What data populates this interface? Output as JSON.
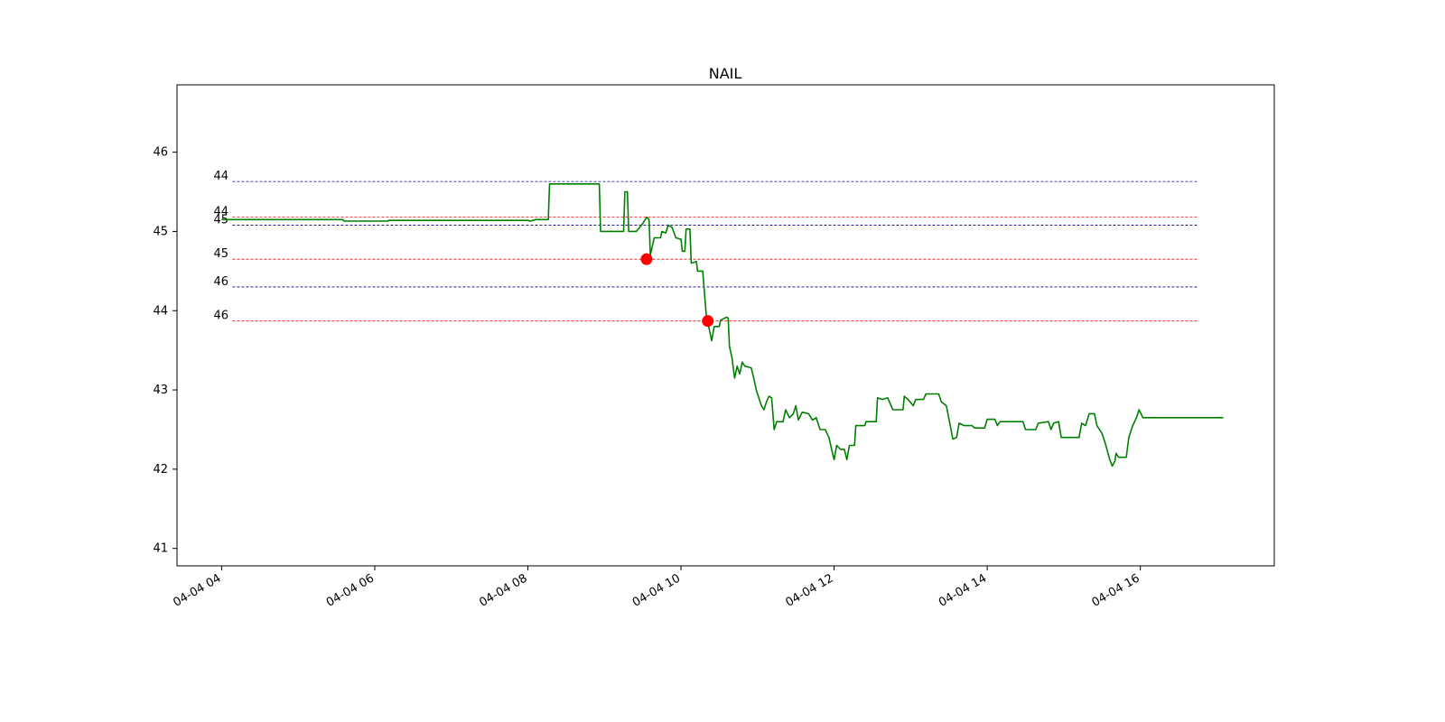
{
  "chart_data": {
    "type": "line",
    "title": "NAIL",
    "xlabel": "",
    "ylabel": "",
    "x_axis": {
      "type": "time",
      "range": [
        "04-04 03:25",
        "04-04 17:45"
      ],
      "ticks": [
        "04-04 04",
        "04-04 06",
        "04-04 08",
        "04-04 10",
        "04-04 12",
        "04-04 14",
        "04-04 16"
      ]
    },
    "y_axis": {
      "range": [
        40.78,
        46.85
      ],
      "ticks": [
        41,
        42,
        43,
        44,
        45,
        46
      ],
      "tick_labels": [
        "41",
        "42",
        "43",
        "44",
        "45",
        "46"
      ]
    },
    "grid": false,
    "legend": "none",
    "colors": {
      "price": "#008000",
      "marker": "#ff0000",
      "blue_level": "#00008b",
      "red_level": "#ff0000"
    },
    "series": [
      {
        "color": "#008000",
        "points": [
          [
            "04:00",
            45.15
          ],
          [
            "05:35",
            45.15
          ],
          [
            "05:36",
            45.13
          ],
          [
            "06:10",
            45.13
          ],
          [
            "06:11",
            45.14
          ],
          [
            "08:00",
            45.14
          ],
          [
            "08:02",
            45.13
          ],
          [
            "08:06",
            45.15
          ],
          [
            "08:16",
            45.15
          ],
          [
            "08:17",
            45.6
          ],
          [
            "08:56",
            45.6
          ],
          [
            "08:57",
            45.0
          ],
          [
            "09:15",
            45.0
          ],
          [
            "09:16",
            45.5
          ],
          [
            "09:18",
            45.5
          ],
          [
            "09:19",
            45.0
          ],
          [
            "09:25",
            45.0
          ],
          [
            "09:30",
            45.1
          ],
          [
            "09:33",
            45.18
          ],
          [
            "09:35",
            45.15
          ],
          [
            "09:36",
            44.7
          ],
          [
            "09:39",
            44.92
          ],
          [
            "09:44",
            44.92
          ],
          [
            "09:45",
            45.0
          ],
          [
            "09:48",
            44.98
          ],
          [
            "09:50",
            45.08
          ],
          [
            "09:53",
            45.05
          ],
          [
            "09:56",
            44.92
          ],
          [
            "10:00",
            44.9
          ],
          [
            "10:01",
            44.75
          ],
          [
            "10:03",
            44.75
          ],
          [
            "10:04",
            45.03
          ],
          [
            "10:07",
            45.03
          ],
          [
            "10:08",
            44.6
          ],
          [
            "10:12",
            44.62
          ],
          [
            "10:13",
            44.5
          ],
          [
            "10:17",
            44.5
          ],
          [
            "10:18",
            44.3
          ],
          [
            "10:20",
            43.9
          ],
          [
            "10:22",
            43.78
          ],
          [
            "10:24",
            43.62
          ],
          [
            "10:26",
            43.8
          ],
          [
            "10:30",
            43.8
          ],
          [
            "10:31",
            43.88
          ],
          [
            "10:36",
            43.92
          ],
          [
            "10:37",
            43.9
          ],
          [
            "10:38",
            43.55
          ],
          [
            "10:40",
            43.4
          ],
          [
            "10:42",
            43.15
          ],
          [
            "10:44",
            43.3
          ],
          [
            "10:46",
            43.2
          ],
          [
            "10:48",
            43.35
          ],
          [
            "10:50",
            43.3
          ],
          [
            "10:55",
            43.28
          ],
          [
            "10:57",
            43.15
          ],
          [
            "10:59",
            43.0
          ],
          [
            "11:01",
            42.9
          ],
          [
            "11:03",
            42.8
          ],
          [
            "11:05",
            42.75
          ],
          [
            "11:07",
            42.85
          ],
          [
            "11:09",
            42.92
          ],
          [
            "11:11",
            42.9
          ],
          [
            "11:13",
            42.5
          ],
          [
            "11:15",
            42.6
          ],
          [
            "11:20",
            42.6
          ],
          [
            "11:22",
            42.75
          ],
          [
            "11:25",
            42.65
          ],
          [
            "11:28",
            42.7
          ],
          [
            "11:30",
            42.8
          ],
          [
            "11:32",
            42.62
          ],
          [
            "11:35",
            42.72
          ],
          [
            "11:40",
            42.7
          ],
          [
            "11:43",
            42.62
          ],
          [
            "11:46",
            42.65
          ],
          [
            "11:49",
            42.5
          ],
          [
            "11:53",
            42.5
          ],
          [
            "11:56",
            42.4
          ],
          [
            "11:58",
            42.25
          ],
          [
            "12:00",
            42.12
          ],
          [
            "12:02",
            42.3
          ],
          [
            "12:05",
            42.25
          ],
          [
            "12:08",
            42.25
          ],
          [
            "12:10",
            42.12
          ],
          [
            "12:12",
            42.3
          ],
          [
            "12:16",
            42.3
          ],
          [
            "12:17",
            42.55
          ],
          [
            "12:24",
            42.55
          ],
          [
            "12:25",
            42.6
          ],
          [
            "12:33",
            42.6
          ],
          [
            "12:34",
            42.9
          ],
          [
            "12:38",
            42.88
          ],
          [
            "12:42",
            42.9
          ],
          [
            "12:46",
            42.75
          ],
          [
            "12:54",
            42.75
          ],
          [
            "12:55",
            42.92
          ],
          [
            "12:58",
            42.88
          ],
          [
            "13:02",
            42.8
          ],
          [
            "13:04",
            42.88
          ],
          [
            "13:10",
            42.88
          ],
          [
            "13:12",
            42.95
          ],
          [
            "13:22",
            42.95
          ],
          [
            "13:24",
            42.85
          ],
          [
            "13:28",
            42.8
          ],
          [
            "13:31",
            42.55
          ],
          [
            "13:33",
            42.38
          ],
          [
            "13:36",
            42.4
          ],
          [
            "13:38",
            42.58
          ],
          [
            "13:42",
            42.55
          ],
          [
            "13:48",
            42.55
          ],
          [
            "13:50",
            42.52
          ],
          [
            "13:58",
            42.52
          ],
          [
            "14:00",
            42.63
          ],
          [
            "14:06",
            42.63
          ],
          [
            "14:08",
            42.55
          ],
          [
            "14:10",
            42.6
          ],
          [
            "14:28",
            42.6
          ],
          [
            "14:30",
            42.5
          ],
          [
            "14:38",
            42.5
          ],
          [
            "14:40",
            42.58
          ],
          [
            "14:48",
            42.6
          ],
          [
            "14:50",
            42.5
          ],
          [
            "14:52",
            42.58
          ],
          [
            "14:56",
            42.6
          ],
          [
            "14:58",
            42.4
          ],
          [
            "15:12",
            42.4
          ],
          [
            "15:14",
            42.58
          ],
          [
            "15:17",
            42.55
          ],
          [
            "15:20",
            42.7
          ],
          [
            "15:24",
            42.7
          ],
          [
            "15:26",
            42.55
          ],
          [
            "15:30",
            42.45
          ],
          [
            "15:33",
            42.3
          ],
          [
            "15:36",
            42.12
          ],
          [
            "15:38",
            42.04
          ],
          [
            "15:40",
            42.1
          ],
          [
            "15:41",
            42.2
          ],
          [
            "15:43",
            42.15
          ],
          [
            "15:49",
            42.15
          ],
          [
            "15:51",
            42.4
          ],
          [
            "15:54",
            42.55
          ],
          [
            "15:57",
            42.65
          ],
          [
            "15:59",
            42.75
          ],
          [
            "16:02",
            42.65
          ],
          [
            "17:05",
            42.65
          ]
        ]
      }
    ],
    "markers": [
      {
        "x": "09:33",
        "y": 44.65,
        "color": "#ff0000"
      },
      {
        "x": "10:21",
        "y": 43.87,
        "color": "#ff0000"
      }
    ],
    "reference_lines": [
      {
        "label": "44",
        "y": 45.63,
        "color": "#00008b"
      },
      {
        "label": "44",
        "y": 45.18,
        "color": "#ff0000"
      },
      {
        "label": "45",
        "y": 45.08,
        "color": "#00008b"
      },
      {
        "label": "45",
        "y": 44.65,
        "color": "#ff0000"
      },
      {
        "label": "46",
        "y": 44.3,
        "color": "#00008b"
      },
      {
        "label": "46",
        "y": 43.87,
        "color": "#ff0000"
      }
    ],
    "reference_line_span": [
      "04:00",
      "16:45"
    ]
  }
}
